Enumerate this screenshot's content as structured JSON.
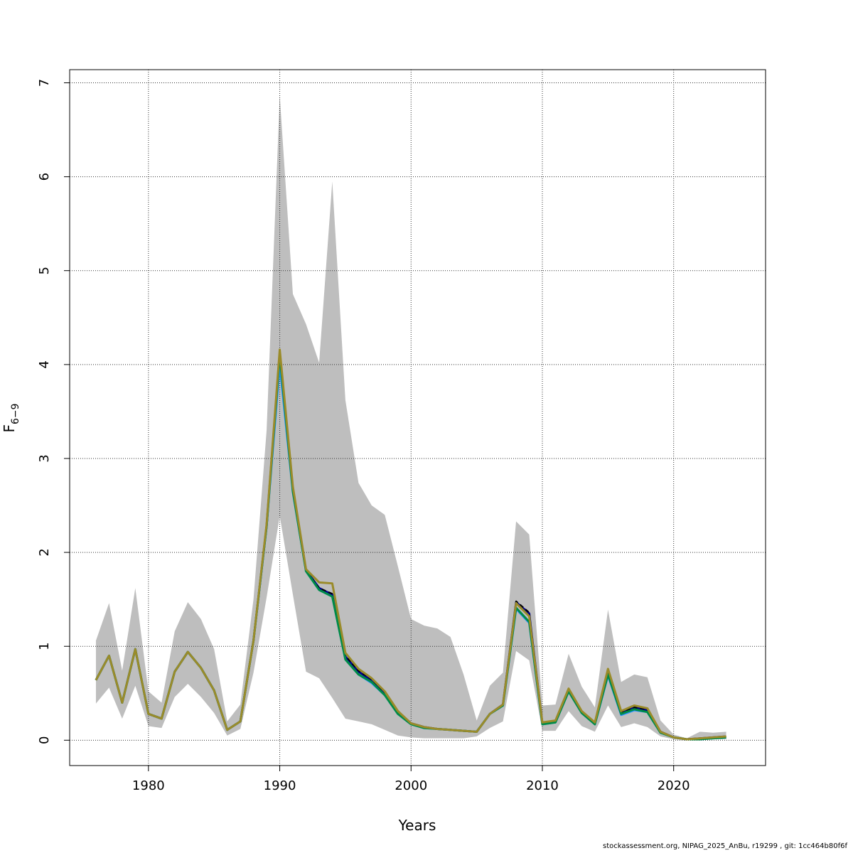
{
  "footer": "stockassessment.org, NIPAG_2025_AnBu, r19299 , git: 1cc464b80f6f",
  "chart_data": {
    "type": "line",
    "title": "",
    "xlabel": "Years",
    "ylabel": "F",
    "ylabel_subscript": "6−9",
    "xlim": [
      1974,
      2027
    ],
    "ylim": [
      -0.27,
      7.14
    ],
    "xticks": [
      1980,
      1990,
      2000,
      2010,
      2020
    ],
    "yticks": [
      0,
      1,
      2,
      3,
      4,
      5,
      6,
      7
    ],
    "grid": true,
    "band_color": "#bebebe",
    "x": [
      1976,
      1977,
      1978,
      1979,
      1980,
      1981,
      1982,
      1983,
      1984,
      1985,
      1986,
      1987,
      1988,
      1989,
      1990,
      1991,
      1992,
      1993,
      1994,
      1995,
      1996,
      1997,
      1998,
      1999,
      2000,
      2001,
      2002,
      2003,
      2004,
      2005,
      2006,
      2007,
      2008,
      2009,
      2010,
      2011,
      2012,
      2013,
      2014,
      2015,
      2016,
      2017,
      2018,
      2019,
      2020,
      2021,
      2022,
      2023,
      2024
    ],
    "band_upper": [
      1.06,
      1.46,
      0.74,
      1.62,
      0.52,
      0.4,
      1.16,
      1.47,
      1.29,
      0.97,
      0.2,
      0.38,
      1.5,
      3.3,
      6.86,
      4.75,
      4.43,
      4.02,
      5.95,
      3.62,
      2.74,
      2.5,
      2.4,
      1.85,
      1.29,
      1.22,
      1.19,
      1.1,
      0.7,
      0.21,
      0.58,
      0.72,
      2.33,
      2.19,
      0.37,
      0.38,
      0.92,
      0.57,
      0.35,
      1.39,
      0.62,
      0.7,
      0.67,
      0.21,
      0.06,
      0.02,
      0.09,
      0.08,
      0.09
    ],
    "band_lower": [
      0.39,
      0.56,
      0.23,
      0.58,
      0.15,
      0.13,
      0.46,
      0.6,
      0.46,
      0.29,
      0.05,
      0.12,
      0.72,
      1.52,
      2.39,
      1.55,
      0.73,
      0.66,
      0.45,
      0.23,
      0.2,
      0.17,
      0.11,
      0.05,
      0.03,
      0.02,
      0.02,
      0.02,
      0.02,
      0.04,
      0.13,
      0.2,
      0.95,
      0.85,
      0.1,
      0.1,
      0.31,
      0.15,
      0.09,
      0.37,
      0.14,
      0.18,
      0.14,
      0.04,
      0.01,
      0.0,
      0.01,
      0.01,
      0.01
    ],
    "series": [
      {
        "color": "#00008b",
        "values": [
          0.64,
          0.9,
          0.4,
          0.97,
          0.28,
          0.23,
          0.73,
          0.94,
          0.77,
          0.53,
          0.11,
          0.2,
          1.06,
          2.28,
          4.12,
          2.66,
          1.81,
          1.62,
          1.55,
          0.89,
          0.73,
          0.64,
          0.5,
          0.3,
          0.18,
          0.14,
          0.12,
          0.11,
          0.1,
          0.09,
          0.28,
          0.38,
          1.47,
          1.35,
          0.18,
          0.2,
          0.53,
          0.3,
          0.18,
          0.72,
          0.29,
          0.35,
          0.32,
          0.09,
          0.03,
          0.01,
          0.02,
          0.03,
          0.04
        ]
      },
      {
        "color": "#000000",
        "dashed": true,
        "values": [
          0.64,
          0.9,
          0.4,
          0.97,
          0.28,
          0.23,
          0.73,
          0.94,
          0.77,
          0.53,
          0.11,
          0.2,
          1.06,
          2.28,
          4.12,
          2.66,
          1.81,
          1.62,
          1.56,
          0.9,
          0.74,
          0.65,
          0.51,
          0.3,
          0.18,
          0.14,
          0.12,
          0.11,
          0.1,
          0.09,
          0.28,
          0.38,
          1.48,
          1.36,
          0.18,
          0.2,
          0.53,
          0.3,
          0.18,
          0.72,
          0.3,
          0.35,
          0.33,
          0.09,
          0.03,
          0.01,
          0.02,
          0.03,
          0.04
        ]
      },
      {
        "color": "#1e90ff",
        "values": [
          0.64,
          0.9,
          0.4,
          0.97,
          0.28,
          0.23,
          0.73,
          0.94,
          0.77,
          0.53,
          0.11,
          0.2,
          1.06,
          2.28,
          4.0,
          2.64,
          1.8,
          1.6,
          1.53,
          0.86,
          0.7,
          0.61,
          0.48,
          0.28,
          0.17,
          0.13,
          0.12,
          0.11,
          0.1,
          0.09,
          0.28,
          0.37,
          1.4,
          1.25,
          0.17,
          0.19,
          0.52,
          0.29,
          0.17,
          0.69,
          0.27,
          0.32,
          0.3,
          0.08,
          0.03,
          0.01,
          0.01,
          0.02,
          0.03
        ]
      },
      {
        "color": "#008b45",
        "values": [
          0.64,
          0.9,
          0.4,
          0.97,
          0.28,
          0.23,
          0.73,
          0.94,
          0.77,
          0.53,
          0.11,
          0.2,
          1.06,
          2.28,
          4.1,
          2.65,
          1.8,
          1.6,
          1.53,
          0.86,
          0.7,
          0.62,
          0.48,
          0.28,
          0.17,
          0.13,
          0.12,
          0.11,
          0.1,
          0.09,
          0.28,
          0.37,
          1.41,
          1.26,
          0.17,
          0.19,
          0.52,
          0.29,
          0.17,
          0.7,
          0.28,
          0.33,
          0.3,
          0.08,
          0.03,
          0.01,
          0.01,
          0.02,
          0.03
        ]
      },
      {
        "color": "#9a8b2a",
        "values": [
          0.64,
          0.9,
          0.4,
          0.97,
          0.28,
          0.23,
          0.73,
          0.94,
          0.77,
          0.53,
          0.11,
          0.2,
          1.06,
          2.3,
          4.16,
          2.7,
          1.82,
          1.68,
          1.67,
          0.93,
          0.76,
          0.66,
          0.52,
          0.31,
          0.18,
          0.14,
          0.12,
          0.11,
          0.1,
          0.09,
          0.28,
          0.38,
          1.46,
          1.32,
          0.19,
          0.21,
          0.55,
          0.31,
          0.19,
          0.76,
          0.31,
          0.37,
          0.34,
          0.09,
          0.03,
          0.01,
          0.02,
          0.03,
          0.04
        ]
      }
    ]
  }
}
